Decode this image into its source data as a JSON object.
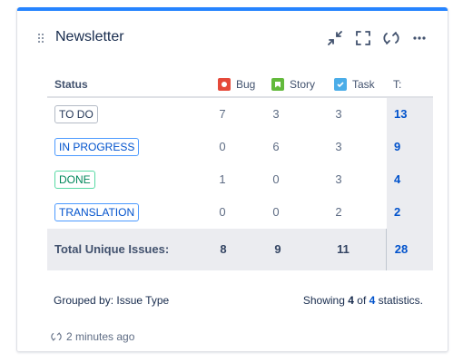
{
  "gadget": {
    "title": "Newsletter",
    "accent_color": "#2684ff",
    "actions": [
      {
        "icon": "minimize-icon"
      },
      {
        "icon": "fullscreen-icon"
      },
      {
        "icon": "refresh-icon"
      },
      {
        "icon": "more-icon"
      }
    ]
  },
  "table": {
    "headers": {
      "status": "Status",
      "bug": "Bug",
      "story": "Story",
      "task": "Task",
      "total": "T:"
    },
    "rows": [
      {
        "status": "TO DO",
        "bug": "7",
        "story": "3",
        "task": "3",
        "total": "13"
      },
      {
        "status": "IN PROGRESS",
        "bug": "0",
        "story": "6",
        "task": "3",
        "total": "9"
      },
      {
        "status": "DONE",
        "bug": "1",
        "story": "0",
        "task": "3",
        "total": "4"
      },
      {
        "status": "TRANSLATION",
        "bug": "0",
        "story": "0",
        "task": "2",
        "total": "2"
      }
    ],
    "totals": {
      "label": "Total Unique Issues:",
      "bug": "8",
      "story": "9",
      "task": "11",
      "total": "28"
    }
  },
  "footer": {
    "grouped_by": "Grouped by: Issue Type",
    "showing_prefix": "Showing ",
    "showing_count": "4",
    "showing_mid": " of ",
    "showing_total": "4",
    "showing_suffix": " statistics.",
    "updated": "2 minutes ago"
  }
}
